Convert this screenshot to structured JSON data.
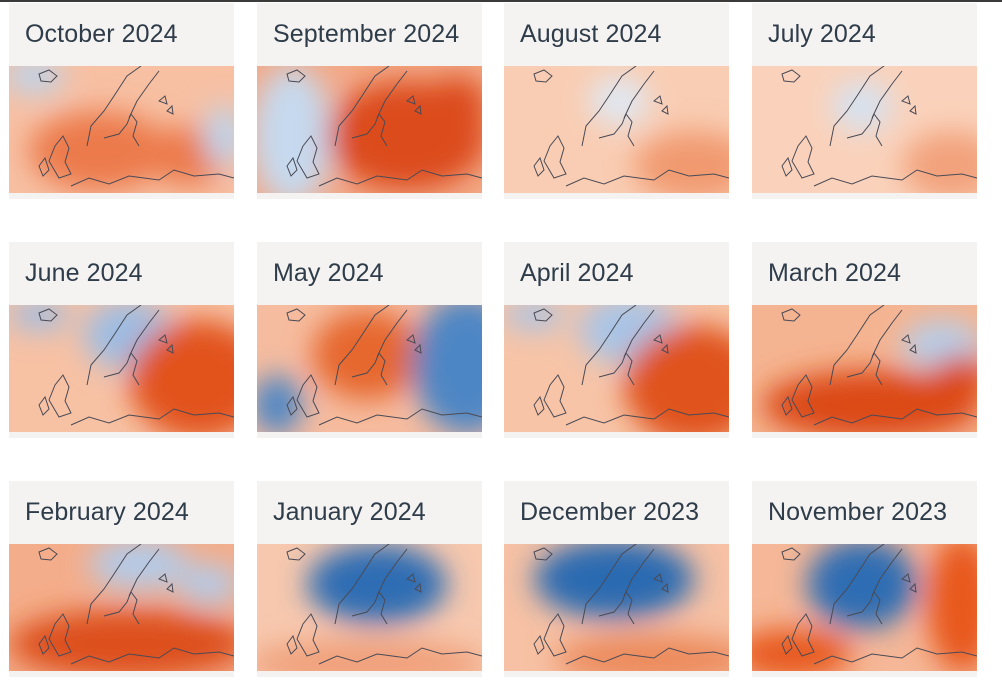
{
  "cards": [
    {
      "title": "October 2024",
      "palette": {
        "base": "#f7c0a3",
        "hot": "#ec7a4c",
        "cold": "#bcd4ec"
      }
    },
    {
      "title": "September 2024",
      "palette": {
        "base": "#f3a987",
        "hot": "#dc4b1e",
        "cold": "#c6d9ee"
      }
    },
    {
      "title": "August 2024",
      "palette": {
        "base": "#f9cdb3",
        "hot": "#f19a70",
        "cold": "#dfe8f3"
      }
    },
    {
      "title": "July 2024",
      "palette": {
        "base": "#fad2bb",
        "hot": "#f2a27b",
        "cold": "#d5e2f1"
      }
    },
    {
      "title": "June 2024",
      "palette": {
        "base": "#f7c1a4",
        "hot": "#e2531f",
        "cold": "#9dbde3"
      }
    },
    {
      "title": "May 2024",
      "palette": {
        "base": "#f6bc9f",
        "hot": "#e6672f",
        "cold": "#4e86c4"
      }
    },
    {
      "title": "April 2024",
      "palette": {
        "base": "#f7c4a7",
        "hot": "#e0521e",
        "cold": "#a9c5e6"
      }
    },
    {
      "title": "March 2024",
      "palette": {
        "base": "#f5b491",
        "hot": "#dc4a17",
        "cold": "#b6cee9"
      }
    },
    {
      "title": "February 2024",
      "palette": {
        "base": "#f4ad8a",
        "hot": "#dd4f1c",
        "cold": "#b3cae8"
      }
    },
    {
      "title": "January 2024",
      "palette": {
        "base": "#f7c8ae",
        "hot": "#f0a07a",
        "cold": "#2f6db3"
      }
    },
    {
      "title": "December 2023",
      "palette": {
        "base": "#f6c1a4",
        "hot": "#ec8a5c",
        "cold": "#2b6ab1"
      }
    },
    {
      "title": "November 2023",
      "palette": {
        "base": "#f5b797",
        "hot": "#e8581f",
        "cold": "#2f6db3"
      }
    }
  ]
}
